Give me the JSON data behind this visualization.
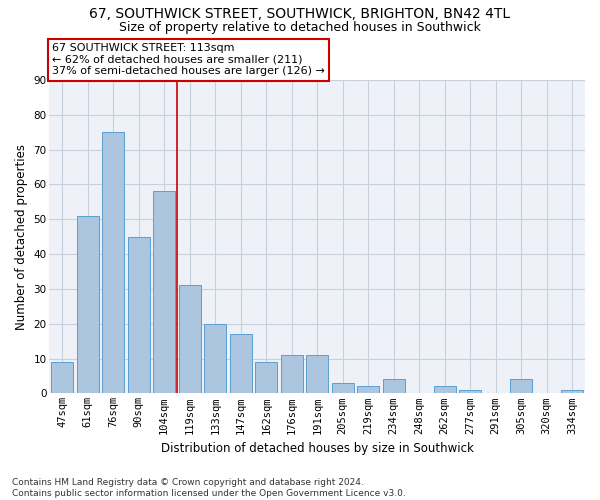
{
  "title": "67, SOUTHWICK STREET, SOUTHWICK, BRIGHTON, BN42 4TL",
  "subtitle": "Size of property relative to detached houses in Southwick",
  "xlabel": "Distribution of detached houses by size in Southwick",
  "ylabel": "Number of detached properties",
  "categories": [
    "47sqm",
    "61sqm",
    "76sqm",
    "90sqm",
    "104sqm",
    "119sqm",
    "133sqm",
    "147sqm",
    "162sqm",
    "176sqm",
    "191sqm",
    "205sqm",
    "219sqm",
    "234sqm",
    "248sqm",
    "262sqm",
    "277sqm",
    "291sqm",
    "305sqm",
    "320sqm",
    "334sqm"
  ],
  "values": [
    9,
    51,
    75,
    45,
    58,
    31,
    20,
    17,
    9,
    11,
    11,
    3,
    2,
    4,
    0,
    2,
    1,
    0,
    4,
    0,
    1
  ],
  "bar_color": "#adc6e0",
  "bar_edge_color": "#5a9fd4",
  "property_line_x": 4.5,
  "annotation_line1": "67 SOUTHWICK STREET: 113sqm",
  "annotation_line2": "← 62% of detached houses are smaller (211)",
  "annotation_line3": "37% of semi-detached houses are larger (126) →",
  "annotation_box_color": "#ffffff",
  "annotation_box_edge": "#cc0000",
  "vline_color": "#cc0000",
  "ylim": [
    0,
    90
  ],
  "yticks": [
    0,
    10,
    20,
    30,
    40,
    50,
    60,
    70,
    80,
    90
  ],
  "grid_color": "#c8d0dc",
  "bg_color": "#eef2f8",
  "footer": "Contains HM Land Registry data © Crown copyright and database right 2024.\nContains public sector information licensed under the Open Government Licence v3.0.",
  "title_fontsize": 10,
  "subtitle_fontsize": 9,
  "xlabel_fontsize": 8.5,
  "ylabel_fontsize": 8.5,
  "tick_fontsize": 7.5,
  "footer_fontsize": 6.5,
  "annotation_fontsize": 8
}
